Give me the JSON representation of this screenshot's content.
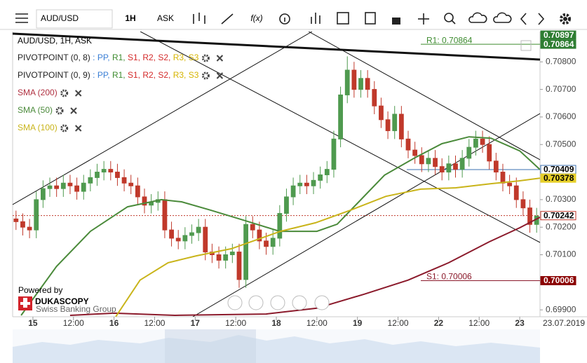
{
  "toolbar": {
    "symbol": "AUD/USD",
    "period": "1H",
    "side": "ASK",
    "fx": "f(x)"
  },
  "legend": {
    "title": "AUD/USD, 1H, ASK",
    "indicators": [
      {
        "name": "PIVOTPOINT (0, 8)",
        "color": "#222222",
        "parts": [
          {
            "text": " : PP,",
            "color": "#3a7fd5"
          },
          {
            "text": " R1,",
            "color": "#3d8b2f"
          },
          {
            "text": " S1,",
            "color": "#d42a2a"
          },
          {
            "text": " R2,",
            "color": "#d42a2a"
          },
          {
            "text": " S2,",
            "color": "#d42a2a"
          },
          {
            "text": " R3,",
            "color": "#d6b400"
          },
          {
            "text": " S3",
            "color": "#d6b400"
          }
        ]
      },
      {
        "name": "PIVOTPOINT (0, 9)",
        "color": "#222222",
        "parts": [
          {
            "text": " : PP,",
            "color": "#3a7fd5"
          },
          {
            "text": " R1,",
            "color": "#3d8b2f"
          },
          {
            "text": " S1,",
            "color": "#d42a2a"
          },
          {
            "text": " R2,",
            "color": "#d42a2a"
          },
          {
            "text": " S2,",
            "color": "#d42a2a"
          },
          {
            "text": " R3,",
            "color": "#d6b400"
          },
          {
            "text": " S3",
            "color": "#d6b400"
          }
        ]
      },
      {
        "name": "SMA (200)",
        "color": "#b03040",
        "parts": []
      },
      {
        "name": "SMA (50)",
        "color": "#4a8a3a",
        "parts": []
      },
      {
        "name": "SMA (100)",
        "color": "#c9b41a",
        "parts": []
      }
    ]
  },
  "branding": {
    "powered": "Powered by",
    "brand": "DUKASCOPY",
    "tagline": "Swiss Banking Group"
  },
  "chart_data": {
    "type": "candlestick",
    "up_color": "#4f9a4f",
    "down_color": "#c0392b",
    "xlim": [
      -6,
      150
    ],
    "ylim": [
      0.69875,
      0.7091
    ],
    "xticks": [
      {
        "value": 0,
        "label": "15"
      },
      {
        "value": 12,
        "label": "12:00"
      },
      {
        "value": 24,
        "label": "16"
      },
      {
        "value": 36,
        "label": "12:00"
      },
      {
        "value": 48,
        "label": "17"
      },
      {
        "value": 60,
        "label": "12:00"
      },
      {
        "value": 72,
        "label": "18"
      },
      {
        "value": 84,
        "label": "12:00"
      },
      {
        "value": 96,
        "label": "19"
      },
      {
        "value": 108,
        "label": "12:00"
      },
      {
        "value": 120,
        "label": "22"
      },
      {
        "value": 132,
        "label": "12:00"
      },
      {
        "value": 144,
        "label": "23"
      }
    ],
    "date_label": "23.07.2019",
    "yticks": [
      {
        "value": 0.699,
        "label": "0.69900"
      },
      {
        "value": 0.7,
        "label": "0.70000"
      },
      {
        "value": 0.701,
        "label": "0.70100"
      },
      {
        "value": 0.702,
        "label": "0.70200"
      },
      {
        "value": 0.703,
        "label": "0.70300"
      },
      {
        "value": 0.704,
        "label": "0.70400"
      },
      {
        "value": 0.705,
        "label": "0.70500"
      },
      {
        "value": 0.706,
        "label": "0.70600"
      },
      {
        "value": 0.707,
        "label": "0.70700"
      },
      {
        "value": 0.708,
        "label": "0.70800"
      }
    ],
    "x": [
      -5,
      -3,
      -1,
      1,
      3,
      5,
      7,
      9,
      11,
      13,
      15,
      17,
      19,
      21,
      23,
      25,
      27,
      29,
      31,
      33,
      35,
      37,
      39,
      41,
      43,
      45,
      47,
      49,
      51,
      53,
      55,
      57,
      59,
      61,
      63,
      65,
      67,
      69,
      71,
      73,
      75,
      77,
      79,
      81,
      83,
      85,
      87,
      89,
      91,
      93,
      95,
      97,
      99,
      101,
      103,
      105,
      107,
      109,
      111,
      113,
      115,
      117,
      119,
      121,
      123,
      125,
      127,
      129,
      131,
      133,
      135,
      137,
      139,
      141,
      143,
      145,
      147,
      149
    ],
    "open": [
      0.7023,
      0.7022,
      0.702,
      0.7019,
      0.703,
      0.7034,
      0.7035,
      0.7034,
      0.7036,
      0.7035,
      0.7033,
      0.7036,
      0.7038,
      0.704,
      0.7041,
      0.704,
      0.7038,
      0.7036,
      0.7035,
      0.7031,
      0.7028,
      0.7029,
      0.703,
      0.7019,
      0.7016,
      0.7015,
      0.7017,
      0.7018,
      0.702,
      0.7011,
      0.701,
      0.7008,
      0.701,
      0.7011,
      0.7001,
      0.7021,
      0.7019,
      0.7015,
      0.7013,
      0.7016,
      0.7025,
      0.7031,
      0.7035,
      0.7036,
      0.7035,
      0.7037,
      0.7039,
      0.7041,
      0.7052,
      0.7068,
      0.7077,
      0.707,
      0.7074,
      0.707,
      0.7064,
      0.7059,
      0.7055,
      0.7061,
      0.7052,
      0.7048,
      0.7046,
      0.7043,
      0.7045,
      0.7042,
      0.704,
      0.7043,
      0.7041,
      0.7045,
      0.7049,
      0.7052,
      0.705,
      0.7044,
      0.704,
      0.7036,
      0.7035,
      0.703,
      0.7027,
      0.7021
    ],
    "high": [
      0.7026,
      0.7025,
      0.7023,
      0.7033,
      0.7037,
      0.7038,
      0.7038,
      0.7039,
      0.7039,
      0.7038,
      0.7039,
      0.7041,
      0.7043,
      0.7044,
      0.7044,
      0.7043,
      0.7041,
      0.7039,
      0.7038,
      0.7034,
      0.7032,
      0.7033,
      0.7033,
      0.7022,
      0.7019,
      0.702,
      0.7021,
      0.7023,
      0.7023,
      0.7014,
      0.7013,
      0.7013,
      0.7014,
      0.7014,
      0.7024,
      0.7024,
      0.7022,
      0.7018,
      0.7019,
      0.7028,
      0.7034,
      0.7038,
      0.7039,
      0.7039,
      0.704,
      0.7042,
      0.7044,
      0.7055,
      0.7071,
      0.7082,
      0.708,
      0.7077,
      0.7077,
      0.7073,
      0.7067,
      0.7062,
      0.7064,
      0.7064,
      0.7055,
      0.7051,
      0.7049,
      0.7048,
      0.7048,
      0.7045,
      0.7046,
      0.7046,
      0.7048,
      0.7052,
      0.7055,
      0.7055,
      0.7053,
      0.7047,
      0.7043,
      0.7039,
      0.7038,
      0.7033,
      0.703,
      0.7027
    ],
    "low": [
      0.7019,
      0.7017,
      0.7016,
      0.7016,
      0.7027,
      0.7031,
      0.7031,
      0.7031,
      0.7032,
      0.703,
      0.703,
      0.7033,
      0.7035,
      0.7037,
      0.7037,
      0.7035,
      0.7033,
      0.7032,
      0.7028,
      0.7025,
      0.7025,
      0.7026,
      0.7016,
      0.7013,
      0.7012,
      0.7012,
      0.7014,
      0.7015,
      0.7008,
      0.7007,
      0.7005,
      0.7005,
      0.7007,
      0.6998,
      0.6998,
      0.7016,
      0.7012,
      0.701,
      0.701,
      0.7013,
      0.7022,
      0.7028,
      0.7032,
      0.7032,
      0.7032,
      0.7034,
      0.7036,
      0.7038,
      0.7049,
      0.7065,
      0.7067,
      0.7067,
      0.7067,
      0.7061,
      0.7056,
      0.7052,
      0.7052,
      0.7049,
      0.7045,
      0.7043,
      0.704,
      0.704,
      0.7039,
      0.7037,
      0.7037,
      0.7038,
      0.7038,
      0.7042,
      0.7046,
      0.7047,
      0.7041,
      0.7037,
      0.7033,
      0.7032,
      0.7027,
      0.7024,
      0.7018,
      0.7018
    ],
    "close": [
      0.7022,
      0.702,
      0.7019,
      0.703,
      0.7034,
      0.7035,
      0.7034,
      0.7036,
      0.7035,
      0.7033,
      0.7036,
      0.7038,
      0.704,
      0.7041,
      0.704,
      0.7038,
      0.7036,
      0.7035,
      0.7031,
      0.7028,
      0.7029,
      0.703,
      0.7019,
      0.7016,
      0.7015,
      0.7017,
      0.7018,
      0.702,
      0.7011,
      0.701,
      0.7008,
      0.701,
      0.7011,
      0.7001,
      0.7021,
      0.7019,
      0.7015,
      0.7013,
      0.7016,
      0.7025,
      0.7031,
      0.7035,
      0.7036,
      0.7035,
      0.7037,
      0.7039,
      0.7041,
      0.7052,
      0.7068,
      0.7077,
      0.707,
      0.7074,
      0.707,
      0.7064,
      0.7059,
      0.7055,
      0.7061,
      0.7052,
      0.7048,
      0.7046,
      0.7043,
      0.7045,
      0.7042,
      0.704,
      0.7043,
      0.7041,
      0.7045,
      0.7049,
      0.7052,
      0.705,
      0.7044,
      0.704,
      0.7036,
      0.7035,
      0.703,
      0.7027,
      0.7021,
      0.7024
    ],
    "lines": [
      {
        "name": "SMA (200)",
        "color": "#8b1a2b",
        "x": [
          11,
          24,
          42,
          69,
          84,
          98,
          111,
          123,
          135,
          144,
          150
        ],
        "values": [
          0.6988,
          0.69888,
          0.6988,
          0.69885,
          0.69906,
          0.69957,
          0.70008,
          0.70071,
          0.70147,
          0.70198,
          0.70236
        ]
      },
      {
        "name": "SMA (50)",
        "color": "#4a8a3a",
        "x": [
          -3.5,
          7,
          17,
          28,
          38,
          44,
          52.5,
          63,
          73,
          84,
          90,
          96,
          104,
          113,
          121,
          129,
          135.5,
          144,
          150
        ],
        "values": [
          0.6988,
          0.70058,
          0.70185,
          0.70274,
          0.703,
          0.70292,
          0.70262,
          0.70223,
          0.70185,
          0.70185,
          0.70211,
          0.70287,
          0.70389,
          0.70452,
          0.70503,
          0.70528,
          0.70523,
          0.70477,
          0.70409
        ]
      },
      {
        "name": "SMA (100)",
        "color": "#c9b41a",
        "x": [
          24.5,
          31.7,
          40,
          48.3,
          58.7,
          73.2,
          83.6,
          94,
          104.4,
          114.7,
          125.1,
          135.5,
          143.8,
          150
        ],
        "values": [
          0.69875,
          0.70008,
          0.70071,
          0.70096,
          0.70122,
          0.70185,
          0.70216,
          0.70262,
          0.70312,
          0.70338,
          0.70343,
          0.70358,
          0.70368,
          0.70378
        ]
      }
    ],
    "levels": [
      {
        "label": "R1: 0.70864",
        "value": 0.70864,
        "color": "#3d8b2f"
      },
      {
        "label": "S1: 0.70006",
        "value": 0.70006,
        "color": "#8b1a2b"
      }
    ],
    "price_labels": [
      {
        "value": 0.70897,
        "label": "0.70897",
        "fill": "#2e7d32",
        "text_color": "#ffffff",
        "line": "none"
      },
      {
        "value": 0.70864,
        "label": "0.70864",
        "fill": "#2e7d32",
        "text_color": "#ffffff",
        "line": "none"
      },
      {
        "value": 0.70409,
        "label": "0.70409",
        "fill": "#ffffff",
        "text_color": "#000000",
        "border": "#3a6fb0",
        "line": "solid"
      },
      {
        "value": 0.70378,
        "label": "0.70378",
        "fill": "#e6cf2a",
        "text_color": "#000000",
        "line": "none"
      },
      {
        "value": 0.70242,
        "label": "0.70242",
        "fill": "#ffffff",
        "text_color": "#000000",
        "border": "#c0392b",
        "line": "dotted"
      },
      {
        "value": 0.70006,
        "label": "0.70006",
        "fill": "#8b0000",
        "text_color": "#ffffff",
        "line": "none"
      }
    ]
  }
}
